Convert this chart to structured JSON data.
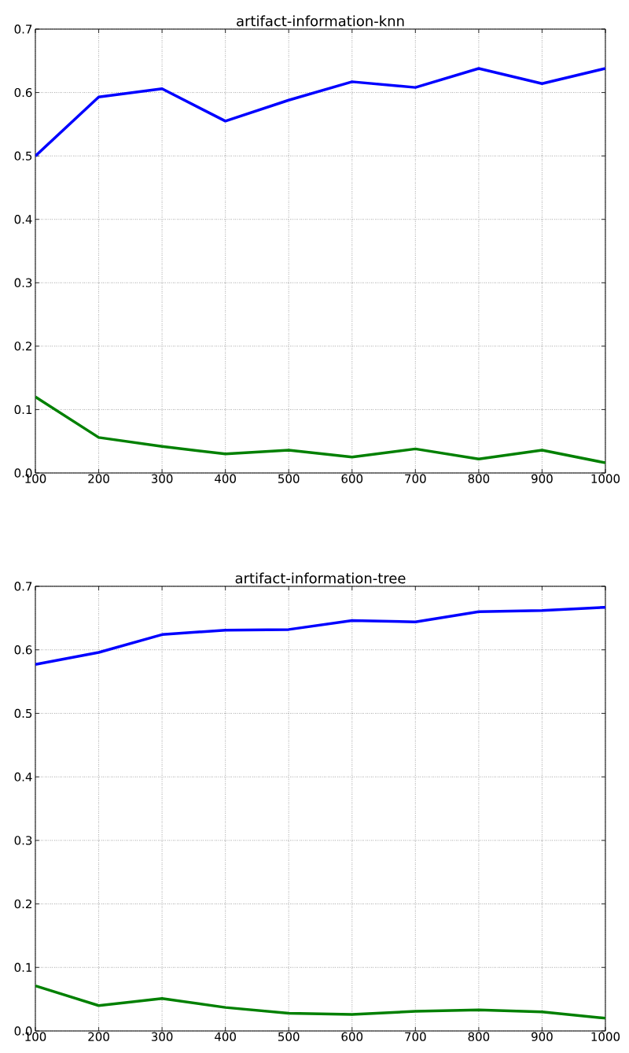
{
  "chart_data": [
    {
      "type": "line",
      "title": "artifact-information-knn",
      "x": [
        100,
        200,
        300,
        400,
        500,
        600,
        700,
        800,
        900,
        1000
      ],
      "xlim": [
        100,
        1000
      ],
      "ylim": [
        0,
        0.7
      ],
      "xticks": [
        100,
        200,
        300,
        400,
        500,
        600,
        700,
        800,
        900,
        1000
      ],
      "yticks": [
        {
          "value": 0,
          "label": "0.0"
        },
        {
          "value": 0.1,
          "label": "0.1"
        },
        {
          "value": 0.2,
          "label": "0.2"
        },
        {
          "value": 0.3,
          "label": "0.3"
        },
        {
          "value": 0.4,
          "label": "0.4"
        },
        {
          "value": 0.5,
          "label": "0.5"
        },
        {
          "value": 0.6,
          "label": "0.6"
        },
        {
          "value": 0.7,
          "label": "0.7"
        }
      ],
      "grid": true,
      "series": [
        {
          "color": "#0000ff",
          "values": [
            0.5,
            0.593,
            0.606,
            0.555,
            0.588,
            0.617,
            0.608,
            0.638,
            0.614,
            0.638
          ]
        },
        {
          "color": "#008000",
          "values": [
            0.12,
            0.056,
            0.042,
            0.03,
            0.036,
            0.025,
            0.038,
            0.022,
            0.036,
            0.016
          ]
        }
      ]
    },
    {
      "type": "line",
      "title": "artifact-information-tree",
      "x": [
        100,
        200,
        300,
        400,
        500,
        600,
        700,
        800,
        900,
        1000
      ],
      "xlim": [
        100,
        1000
      ],
      "ylim": [
        0,
        0.7
      ],
      "xticks": [
        100,
        200,
        300,
        400,
        500,
        600,
        700,
        800,
        900,
        1000
      ],
      "yticks": [
        {
          "value": 0,
          "label": "0.0"
        },
        {
          "value": 0.1,
          "label": "0.1"
        },
        {
          "value": 0.2,
          "label": "0.2"
        },
        {
          "value": 0.3,
          "label": "0.3"
        },
        {
          "value": 0.4,
          "label": "0.4"
        },
        {
          "value": 0.5,
          "label": "0.5"
        },
        {
          "value": 0.6,
          "label": "0.6"
        },
        {
          "value": 0.7,
          "label": "0.7"
        }
      ],
      "grid": true,
      "series": [
        {
          "color": "#0000ff",
          "values": [
            0.577,
            0.596,
            0.624,
            0.631,
            0.632,
            0.646,
            0.644,
            0.66,
            0.662,
            0.667
          ]
        },
        {
          "color": "#008000",
          "values": [
            0.071,
            0.04,
            0.051,
            0.037,
            0.028,
            0.026,
            0.031,
            0.033,
            0.03,
            0.02
          ]
        }
      ]
    }
  ]
}
